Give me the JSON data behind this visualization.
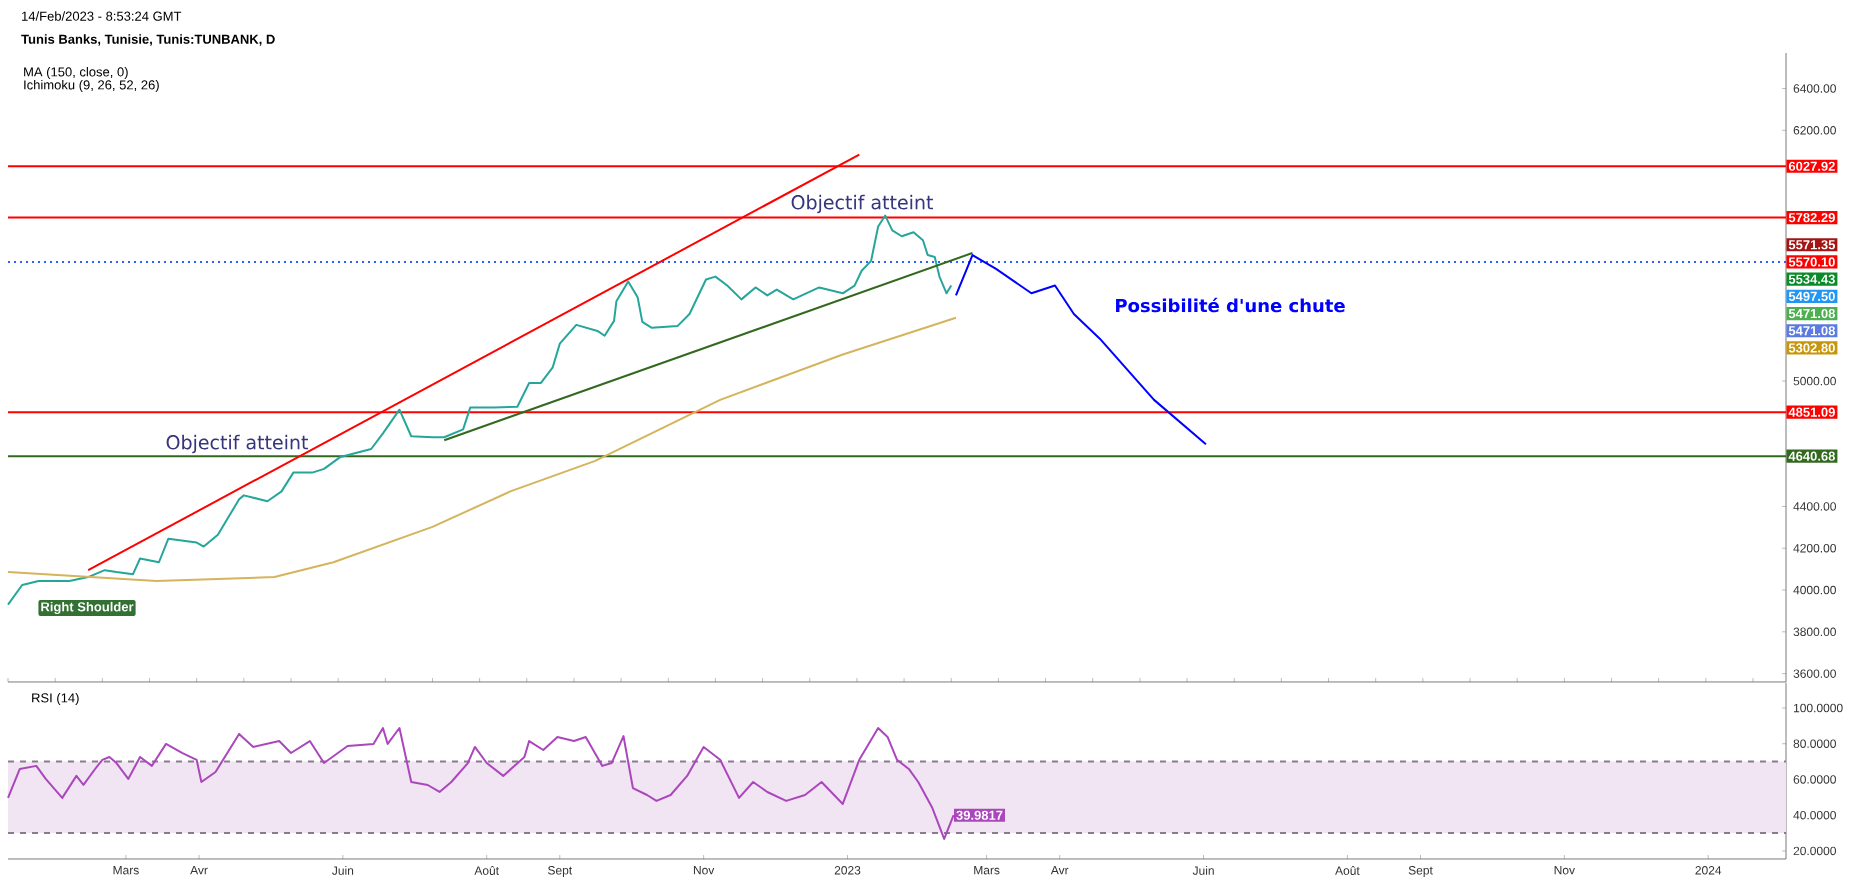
{
  "chart_data": [
    {
      "type": "line",
      "title": "Tunis Banks, Tunisie, Tunis:TUNBANK, D",
      "xlim": [
        "2022-01-10",
        "2024-02-03"
      ],
      "ylim": [
        3560,
        6570
      ],
      "yticks": [
        {
          "value": 3600,
          "label": "3600.00"
        },
        {
          "value": 3800,
          "label": "3800.00"
        },
        {
          "value": 4000,
          "label": "4000.00"
        },
        {
          "value": 4200,
          "label": "4200.00"
        },
        {
          "value": 4400,
          "label": "4400.00"
        },
        {
          "value": 5000,
          "label": "5000.00"
        },
        {
          "value": 6200,
          "label": "6200.00"
        },
        {
          "value": 6400,
          "label": "6400.00"
        }
      ],
      "series": [
        {
          "color": "#26a69a",
          "x": [
            "2022-01-10",
            "2022-01-16",
            "2022-01-23",
            "2022-02-05",
            "2022-02-13",
            "2022-02-20",
            "2022-02-25",
            "2022-03-04",
            "2022-03-07",
            "2022-03-15",
            "2022-03-19",
            "2022-03-31",
            "2022-04-03",
            "2022-04-09",
            "2022-04-18",
            "2022-04-20",
            "2022-04-30",
            "2022-05-06",
            "2022-05-11",
            "2022-05-19",
            "2022-05-24",
            "2022-05-31",
            "2022-06-13",
            "2022-06-18",
            "2022-06-25",
            "2022-06-30",
            "2022-07-09",
            "2022-07-14",
            "2022-07-22",
            "2022-07-25",
            "2022-08-04",
            "2022-08-14",
            "2022-08-19",
            "2022-08-24",
            "2022-08-29",
            "2022-09-01",
            "2022-09-08",
            "2022-09-17",
            "2022-09-20",
            "2022-09-24",
            "2022-09-25",
            "2022-09-30",
            "2022-10-04",
            "2022-10-06",
            "2022-10-10",
            "2022-10-21",
            "2022-10-26",
            "2022-11-02",
            "2022-11-06",
            "2022-11-11",
            "2022-11-17",
            "2022-11-23",
            "2022-11-28",
            "2022-12-02",
            "2022-12-09",
            "2022-12-20",
            "2022-12-30",
            "2023-01-04",
            "2023-01-07",
            "2023-01-11",
            "2023-01-14",
            "2023-01-17",
            "2023-01-20",
            "2023-01-24",
            "2023-01-29",
            "2023-02-02",
            "2023-02-04",
            "2023-02-07",
            "2023-02-09",
            "2023-02-12",
            "2023-02-14"
          ],
          "values": [
            3930,
            4024,
            4043,
            4043,
            4062,
            4095,
            4086,
            4076,
            4151,
            4133,
            4246,
            4227,
            4208,
            4265,
            4434,
            4453,
            4425,
            4472,
            4562,
            4562,
            4580,
            4637,
            4675,
            4750,
            4863,
            4736,
            4731,
            4731,
            4769,
            4873,
            4873,
            4877,
            4991,
            4991,
            5066,
            5179,
            5269,
            5240,
            5217,
            5288,
            5382,
            5476,
            5401,
            5283,
            5255,
            5264,
            5321,
            5486,
            5500,
            5457,
            5391,
            5448,
            5410,
            5438,
            5391,
            5448,
            5420,
            5457,
            5528,
            5575,
            5740,
            5792,
            5721,
            5693,
            5712,
            5674,
            5603,
            5594,
            5500,
            5420,
            5457
          ]
        },
        {
          "color": "#d4b45c",
          "x": [
            "2022-01-10",
            "2022-03-14",
            "2022-05-03",
            "2022-05-28",
            "2022-07-09",
            "2022-08-11",
            "2022-09-16",
            "2022-11-08",
            "2022-12-30",
            "2023-02-16"
          ],
          "values": [
            4086,
            4043,
            4062,
            4133,
            4302,
            4472,
            4618,
            4910,
            5127,
            5303
          ]
        },
        {
          "color": "#ff0000",
          "x": [
            "2022-02-13",
            "2023-01-06"
          ],
          "values": [
            4095,
            6084
          ]
        },
        {
          "color": "#33691e",
          "x": [
            "2022-07-14",
            "2023-02-23"
          ],
          "values": [
            4717,
            5613
          ]
        },
        {
          "color": "#0000ff",
          "x": [
            "2023-02-16",
            "2023-02-23",
            "2023-03-05",
            "2023-03-20",
            "2023-03-30",
            "2023-04-07",
            "2023-04-18",
            "2023-05-11",
            "2023-06-02"
          ],
          "values": [
            5410,
            5603,
            5537,
            5420,
            5457,
            5321,
            5203,
            4910,
            4698
          ]
        }
      ],
      "ref_lines": [
        {
          "axis": "y",
          "value": 6027.92,
          "label": "6027.92",
          "color": "#ff0000"
        },
        {
          "axis": "y",
          "value": 5782.29,
          "label": "5782.29",
          "color": "#ff0000"
        },
        {
          "axis": "y",
          "value": 5570.1,
          "label": "5570.10",
          "color": "#2962ff",
          "line_style": "dotted"
        },
        {
          "axis": "y",
          "value": 4851.09,
          "label": "4851.09",
          "color": "#ff0000"
        },
        {
          "axis": "y",
          "value": 4640.68,
          "label": "4640.68",
          "color": "#33691e"
        }
      ],
      "annotations": [
        "14/Feb/2023 - 8:53:24 GMT",
        "MA (150, close, 0)",
        "Ichimoku (9, 26, 52, 26)",
        "Objectif atteint",
        "Objectif atteint",
        "Possibilité d'une chute",
        "Right Shoulder",
        "5571.35",
        "5534.43",
        "5497.50",
        "5471.08",
        "5471.08",
        "5302.80"
      ]
    },
    {
      "type": "line",
      "xlim": [
        "2022-01-10",
        "2024-02-03"
      ],
      "ylim": [
        15.5,
        114
      ],
      "xticks": [
        {
          "value": "2022-03-01",
          "label": "Mars"
        },
        {
          "value": "2022-04-01",
          "label": "Avr"
        },
        {
          "value": "2022-06-01",
          "label": "Juin"
        },
        {
          "value": "2022-08-01",
          "label": "Août"
        },
        {
          "value": "2022-09-01",
          "label": "Sept"
        },
        {
          "value": "2022-11-01",
          "label": "Nov"
        },
        {
          "value": "2023-01-01",
          "label": "2023"
        },
        {
          "value": "2023-03-01",
          "label": "Mars"
        },
        {
          "value": "2023-04-01",
          "label": "Avr"
        },
        {
          "value": "2023-06-01",
          "label": "Juin"
        },
        {
          "value": "2023-08-01",
          "label": "Août"
        },
        {
          "value": "2023-09-01",
          "label": "Sept"
        },
        {
          "value": "2023-11-01",
          "label": "Nov"
        },
        {
          "value": "2024-01-01",
          "label": "2024"
        }
      ],
      "yticks": [
        {
          "value": 20,
          "label": "20.0000"
        },
        {
          "value": 40,
          "label": "40.0000"
        },
        {
          "value": 60,
          "label": "60.0000"
        },
        {
          "value": 80,
          "label": "80.0000"
        },
        {
          "value": 100,
          "label": "100.0000"
        }
      ],
      "series": [
        {
          "color": "#ab47bc",
          "x": [
            "2022-01-10",
            "2022-01-15",
            "2022-01-22",
            "2022-01-26",
            "2022-02-02",
            "2022-02-08",
            "2022-02-11",
            "2022-02-16",
            "2022-02-19",
            "2022-02-22",
            "2022-02-25",
            "2022-03-02",
            "2022-03-07",
            "2022-03-12",
            "2022-03-18",
            "2022-03-25",
            "2022-03-31",
            "2022-04-02",
            "2022-04-08",
            "2022-04-18",
            "2022-04-24",
            "2022-05-05",
            "2022-05-10",
            "2022-05-18",
            "2022-05-24",
            "2022-06-03",
            "2022-06-14",
            "2022-06-18",
            "2022-06-20",
            "2022-06-25",
            "2022-06-30",
            "2022-07-07",
            "2022-07-12",
            "2022-07-17",
            "2022-07-24",
            "2022-07-27",
            "2022-08-01",
            "2022-08-08",
            "2022-08-17",
            "2022-08-19",
            "2022-08-25",
            "2022-08-31",
            "2022-09-07",
            "2022-09-12",
            "2022-09-19",
            "2022-09-23",
            "2022-09-28",
            "2022-10-02",
            "2022-10-08",
            "2022-10-12",
            "2022-10-18",
            "2022-10-25",
            "2022-11-01",
            "2022-11-08",
            "2022-11-16",
            "2022-11-22",
            "2022-11-28",
            "2022-12-06",
            "2022-12-14",
            "2022-12-21",
            "2022-12-30",
            "2023-01-06",
            "2023-01-14",
            "2023-01-18",
            "2023-01-22",
            "2023-01-27",
            "2023-01-31",
            "2023-02-06",
            "2023-02-11",
            "2023-02-15"
          ],
          "values": [
            49.7,
            65.9,
            67.6,
            60.3,
            49.7,
            62,
            57,
            66,
            71,
            72.6,
            69.2,
            60.3,
            72.6,
            67.6,
            79.9,
            74.8,
            71,
            58.6,
            64.2,
            85.5,
            78.2,
            81.5,
            74.8,
            81.5,
            69.2,
            78.7,
            79.9,
            88.8,
            79.9,
            88.8,
            58.6,
            56.9,
            53,
            58.6,
            69.2,
            78.2,
            69.2,
            62,
            72.6,
            81.5,
            76.5,
            83.8,
            81.5,
            83.8,
            67.6,
            69.2,
            84.3,
            55.2,
            51.3,
            48,
            51.3,
            62,
            78.2,
            71,
            49.7,
            58.6,
            53,
            48,
            51.3,
            58.6,
            46.3,
            71,
            88.8,
            83.8,
            71,
            65.9,
            58.6,
            44,
            26.7,
            39.9817
          ],
          "value_labels": [
            null,
            null,
            null,
            null,
            null,
            null,
            null,
            null,
            null,
            null,
            null,
            null,
            null,
            null,
            null,
            null,
            null,
            null,
            null,
            null,
            null,
            null,
            null,
            null,
            null,
            null,
            null,
            null,
            null,
            null,
            null,
            null,
            null,
            null,
            null,
            null,
            null,
            null,
            null,
            null,
            null,
            null,
            null,
            null,
            null,
            null,
            null,
            null,
            null,
            null,
            null,
            null,
            null,
            null,
            null,
            null,
            null,
            null,
            null,
            null,
            null,
            null,
            null,
            null,
            null,
            null,
            null,
            null,
            null,
            "39.9817"
          ]
        }
      ],
      "ref_lines": [
        {
          "axis": "y",
          "value": 70,
          "color": "#8a7a8e",
          "line_style": "dashed"
        },
        {
          "axis": "y",
          "value": 30,
          "color": "#8a7a8e",
          "line_style": "dashed"
        }
      ],
      "bands": [
        {
          "axis": "y",
          "from": 30,
          "to": 70,
          "color": "#f1e4f3"
        }
      ],
      "annotations": [
        "RSI (14)"
      ]
    }
  ]
}
